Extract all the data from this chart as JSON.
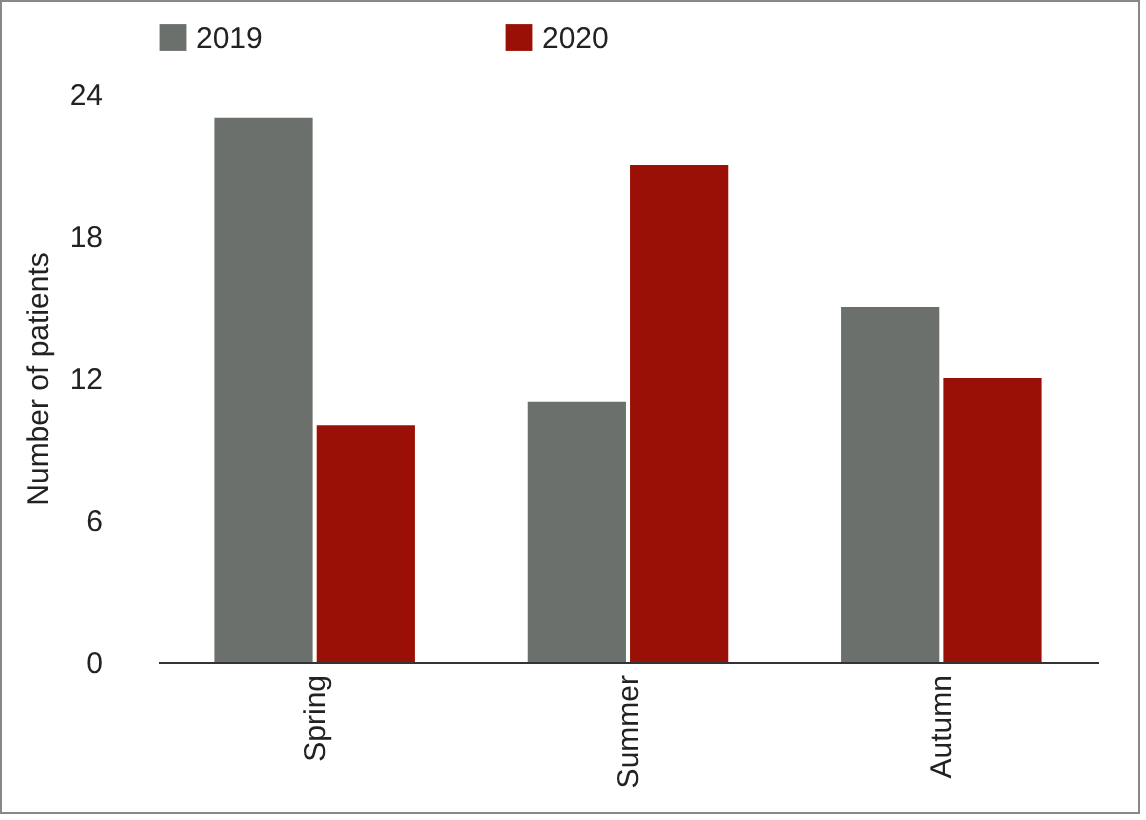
{
  "chart_data": {
    "type": "bar",
    "ylabel": "Number of patients",
    "categories": [
      "Spring",
      "Summer",
      "Autumn"
    ],
    "series": [
      {
        "name": "2019",
        "color": "#6b706c",
        "values": [
          23,
          11,
          15
        ]
      },
      {
        "name": "2020",
        "color": "#9a1006",
        "values": [
          10,
          21,
          12
        ]
      }
    ],
    "ylim": [
      0,
      24
    ],
    "yticks": [
      0,
      6,
      12,
      18,
      24
    ],
    "grid": false,
    "legend": "top"
  }
}
